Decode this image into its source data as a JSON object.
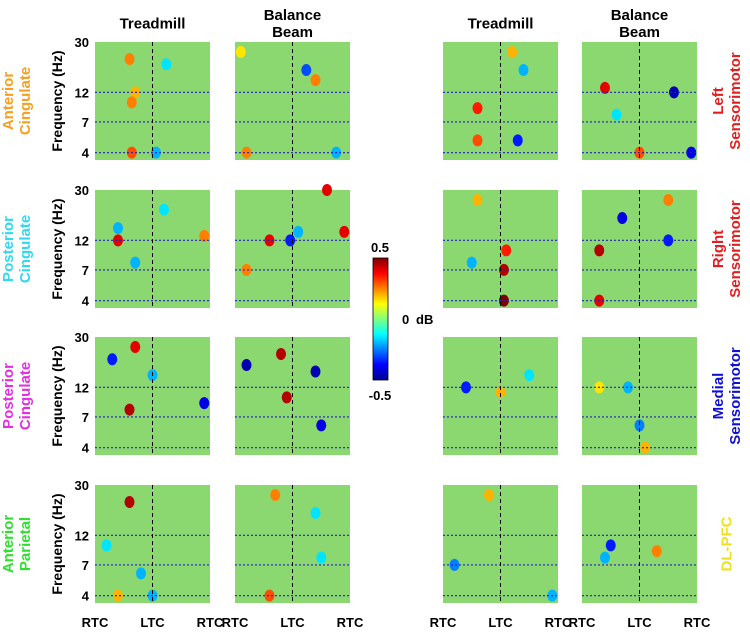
{
  "chart_data": {
    "type": "heatmap",
    "column_titles": [
      "Treadmill",
      "Balance Beam",
      "Treadmill",
      "Balance Beam"
    ],
    "left_labels": [
      {
        "text": "Anterior Cingulate",
        "color": "#f5a020"
      },
      {
        "text": "Posterior Cingulate",
        "color": "#30d8f0"
      },
      {
        "text": "Posterior Cingulate",
        "color": "#e030e0"
      },
      {
        "text": "Anterior Parietal",
        "color": "#30e030"
      }
    ],
    "right_labels": [
      {
        "text": "Left Sensorimotor",
        "color": "#e02020"
      },
      {
        "text": "Right Sensorimotor",
        "color": "#e02020"
      },
      {
        "text": "Medial Sensorimotor",
        "color": "#1010d0"
      },
      {
        "text": "DL-PFC",
        "color": "#f0e020"
      }
    ],
    "ylabel": "Frequency (Hz)",
    "yscale": "log",
    "ylim": [
      3.5,
      30
    ],
    "yticks": [
      4,
      7,
      12,
      30
    ],
    "xlim": [
      0,
      100
    ],
    "xticks": [
      {
        "value": 0,
        "label": "RTC"
      },
      {
        "value": 50,
        "label": "LTC"
      },
      {
        "value": 100,
        "label": "RTC"
      }
    ],
    "clim": [
      -0.5,
      0.5
    ],
    "cticks": [
      0.5,
      0,
      -0.5
    ],
    "colorbar_label": "dB",
    "panels": [
      [
        [
          [
            30,
            22,
            0.25
          ],
          [
            35,
            12,
            0.2
          ],
          [
            32,
            10,
            0.25
          ],
          [
            32,
            4,
            0.3
          ],
          [
            62,
            20,
            -0.15
          ],
          [
            53,
            4,
            -0.2
          ]
        ],
        [
          [
            10,
            4,
            0.25
          ],
          [
            70,
            15,
            0.25
          ],
          [
            62,
            18,
            -0.3
          ],
          [
            5,
            25,
            0.15
          ],
          [
            88,
            4,
            -0.2
          ]
        ],
        [
          [
            30,
            9,
            0.35
          ],
          [
            30,
            5,
            0.3
          ],
          [
            65,
            5,
            -0.35
          ],
          [
            70,
            18,
            -0.2
          ],
          [
            60,
            25,
            0.2
          ]
        ],
        [
          [
            20,
            13,
            0.4
          ],
          [
            80,
            12,
            -0.45
          ],
          [
            50,
            4,
            0.3
          ],
          [
            95,
            4,
            -0.4
          ],
          [
            30,
            8,
            -0.15
          ]
        ]
      ],
      [
        [
          [
            20,
            12,
            0.4
          ],
          [
            35,
            8,
            -0.2
          ],
          [
            20,
            15,
            -0.2
          ],
          [
            95,
            13,
            0.25
          ],
          [
            60,
            21,
            -0.15
          ]
        ],
        [
          [
            30,
            12,
            0.4
          ],
          [
            10,
            7,
            0.25
          ],
          [
            95,
            14,
            0.4
          ],
          [
            55,
            14,
            -0.2
          ],
          [
            80,
            30,
            0.4
          ],
          [
            48,
            12,
            -0.35
          ]
        ],
        [
          [
            53,
            4,
            0.5
          ],
          [
            53,
            7,
            0.45
          ],
          [
            55,
            10,
            0.35
          ],
          [
            25,
            8,
            -0.2
          ],
          [
            30,
            25,
            0.2
          ]
        ],
        [
          [
            15,
            10,
            0.45
          ],
          [
            15,
            4,
            0.4
          ],
          [
            35,
            18,
            -0.4
          ],
          [
            75,
            25,
            0.25
          ],
          [
            75,
            12,
            -0.35
          ]
        ]
      ],
      [
        [
          [
            35,
            25,
            0.4
          ],
          [
            30,
            8,
            0.45
          ],
          [
            15,
            20,
            -0.35
          ],
          [
            95,
            9,
            -0.4
          ],
          [
            50,
            15,
            -0.2
          ]
        ],
        [
          [
            40,
            22,
            0.45
          ],
          [
            45,
            10,
            0.45
          ],
          [
            10,
            18,
            -0.45
          ],
          [
            70,
            16,
            -0.45
          ],
          [
            75,
            6,
            -0.4
          ]
        ],
        [
          [
            20,
            12,
            -0.35
          ],
          [
            50,
            11,
            0.2
          ],
          [
            75,
            15,
            -0.15
          ]
        ],
        [
          [
            50,
            6,
            -0.25
          ],
          [
            15,
            12,
            0.15
          ],
          [
            40,
            12,
            -0.2
          ],
          [
            55,
            4,
            0.2
          ]
        ]
      ],
      [
        [
          [
            30,
            22,
            0.45
          ],
          [
            40,
            6,
            -0.2
          ],
          [
            50,
            4,
            -0.2
          ],
          [
            20,
            4,
            0.2
          ],
          [
            10,
            10,
            -0.15
          ]
        ],
        [
          [
            30,
            4,
            0.3
          ],
          [
            35,
            25,
            0.25
          ],
          [
            70,
            18,
            -0.15
          ],
          [
            75,
            8,
            -0.15
          ]
        ],
        [
          [
            10,
            7,
            -0.25
          ],
          [
            95,
            4,
            -0.2
          ],
          [
            40,
            25,
            0.2
          ]
        ],
        [
          [
            20,
            8,
            -0.2
          ],
          [
            65,
            9,
            0.25
          ],
          [
            25,
            10,
            -0.35
          ]
        ]
      ]
    ]
  }
}
